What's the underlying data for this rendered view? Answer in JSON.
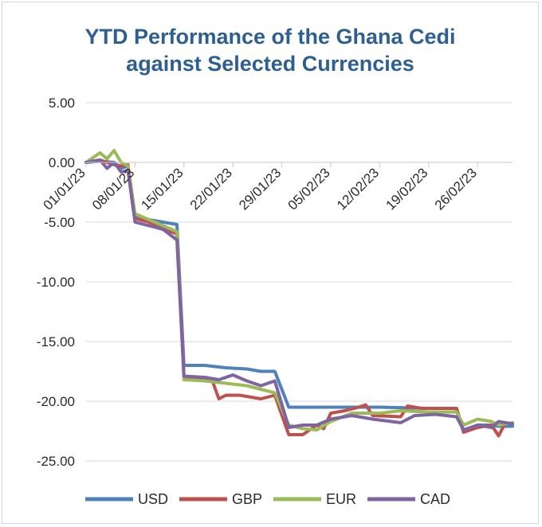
{
  "chart_data": {
    "type": "line",
    "title_lines": [
      "YTD Performance of the Ghana Cedi",
      "against Selected Currencies"
    ],
    "xlabel": "",
    "ylabel": "",
    "ylim": [
      -25,
      5
    ],
    "yticks": [
      5,
      0,
      -5,
      -10,
      -15,
      -20,
      -25
    ],
    "ytick_labels": [
      "5.00",
      "0.00",
      "-5.00",
      "-10.00",
      "-15.00",
      "-20.00",
      "-25.00"
    ],
    "xlim": [
      "2023-01-01",
      "2023-03-03"
    ],
    "xticks": [
      "2023-01-01",
      "2023-01-08",
      "2023-01-15",
      "2023-01-22",
      "2023-01-29",
      "2023-02-05",
      "2023-02-12",
      "2023-02-19",
      "2023-02-26"
    ],
    "xtick_labels": [
      "01/01/23",
      "08/01/23",
      "15/01/23",
      "22/01/23",
      "29/01/23",
      "05/02/23",
      "12/02/23",
      "19/02/23",
      "26/02/23"
    ],
    "grid": "horizontal",
    "legend_position": "bottom",
    "series": [
      {
        "name": "USD",
        "color": "#4f81bd",
        "points": [
          [
            "2023-01-01",
            0.0
          ],
          [
            "2023-01-03",
            0.1
          ],
          [
            "2023-01-05",
            0.0
          ],
          [
            "2023-01-06",
            -0.5
          ],
          [
            "2023-01-07",
            -0.3
          ],
          [
            "2023-01-08",
            -4.5
          ],
          [
            "2023-01-10",
            -4.8
          ],
          [
            "2023-01-12",
            -5.0
          ],
          [
            "2023-01-14",
            -5.2
          ],
          [
            "2023-01-15",
            -17.0
          ],
          [
            "2023-01-18",
            -17.0
          ],
          [
            "2023-01-21",
            -17.2
          ],
          [
            "2023-01-24",
            -17.3
          ],
          [
            "2023-01-26",
            -17.5
          ],
          [
            "2023-01-28",
            -17.5
          ],
          [
            "2023-01-30",
            -20.5
          ],
          [
            "2023-02-05",
            -20.5
          ],
          [
            "2023-02-12",
            -20.5
          ],
          [
            "2023-02-19",
            -20.6
          ],
          [
            "2023-02-23",
            -20.6
          ],
          [
            "2023-02-24",
            -22.5
          ],
          [
            "2023-02-26",
            -22.0
          ],
          [
            "2023-02-28",
            -22.0
          ],
          [
            "2023-03-01",
            -22.1
          ],
          [
            "2023-03-03",
            -22.1
          ]
        ]
      },
      {
        "name": "GBP",
        "color": "#c0504d",
        "points": [
          [
            "2023-01-01",
            0.0
          ],
          [
            "2023-01-03",
            0.2
          ],
          [
            "2023-01-05",
            -0.2
          ],
          [
            "2023-01-06",
            -0.3
          ],
          [
            "2023-01-07",
            -0.2
          ],
          [
            "2023-01-08",
            -4.7
          ],
          [
            "2023-01-10",
            -5.0
          ],
          [
            "2023-01-12",
            -5.5
          ],
          [
            "2023-01-14",
            -6.0
          ],
          [
            "2023-01-15",
            -18.0
          ],
          [
            "2023-01-17",
            -18.1
          ],
          [
            "2023-01-19",
            -18.2
          ],
          [
            "2023-01-20",
            -19.8
          ],
          [
            "2023-01-21",
            -19.5
          ],
          [
            "2023-01-23",
            -19.5
          ],
          [
            "2023-01-26",
            -19.8
          ],
          [
            "2023-01-28",
            -19.5
          ],
          [
            "2023-01-30",
            -22.8
          ],
          [
            "2023-02-01",
            -22.8
          ],
          [
            "2023-02-03",
            -22.0
          ],
          [
            "2023-02-04",
            -22.3
          ],
          [
            "2023-02-05",
            -21.0
          ],
          [
            "2023-02-07",
            -20.8
          ],
          [
            "2023-02-09",
            -20.5
          ],
          [
            "2023-02-10",
            -20.3
          ],
          [
            "2023-02-11",
            -21.2
          ],
          [
            "2023-02-15",
            -21.3
          ],
          [
            "2023-02-16",
            -20.4
          ],
          [
            "2023-02-18",
            -20.6
          ],
          [
            "2023-02-23",
            -20.6
          ],
          [
            "2023-02-24",
            -22.6
          ],
          [
            "2023-02-26",
            -22.2
          ],
          [
            "2023-02-28",
            -22.0
          ],
          [
            "2023-03-01",
            -22.9
          ],
          [
            "2023-03-02",
            -21.8
          ],
          [
            "2023-03-03",
            -21.9
          ]
        ]
      },
      {
        "name": "EUR",
        "color": "#9bbb59",
        "points": [
          [
            "2023-01-01",
            0.0
          ],
          [
            "2023-01-03",
            0.8
          ],
          [
            "2023-01-04",
            0.3
          ],
          [
            "2023-01-05",
            1.0
          ],
          [
            "2023-01-06",
            0.0
          ],
          [
            "2023-01-07",
            -0.3
          ],
          [
            "2023-01-08",
            -4.3
          ],
          [
            "2023-01-10",
            -4.8
          ],
          [
            "2023-01-12",
            -5.3
          ],
          [
            "2023-01-14",
            -5.8
          ],
          [
            "2023-01-15",
            -18.2
          ],
          [
            "2023-01-18",
            -18.3
          ],
          [
            "2023-01-21",
            -18.5
          ],
          [
            "2023-01-24",
            -18.7
          ],
          [
            "2023-01-26",
            -19.0
          ],
          [
            "2023-01-28",
            -19.3
          ],
          [
            "2023-01-30",
            -22.0
          ],
          [
            "2023-02-01",
            -22.3
          ],
          [
            "2023-02-03",
            -22.4
          ],
          [
            "2023-02-05",
            -21.7
          ],
          [
            "2023-02-08",
            -21.0
          ],
          [
            "2023-02-12",
            -21.0
          ],
          [
            "2023-02-15",
            -20.8
          ],
          [
            "2023-02-19",
            -20.9
          ],
          [
            "2023-02-23",
            -20.9
          ],
          [
            "2023-02-24",
            -22.0
          ],
          [
            "2023-02-26",
            -21.5
          ],
          [
            "2023-02-28",
            -21.7
          ],
          [
            "2023-03-01",
            -22.0
          ],
          [
            "2023-03-03",
            -21.8
          ]
        ]
      },
      {
        "name": "CAD",
        "color": "#8064a2",
        "points": [
          [
            "2023-01-01",
            0.0
          ],
          [
            "2023-01-03",
            0.2
          ],
          [
            "2023-01-04",
            -0.5
          ],
          [
            "2023-01-05",
            0.0
          ],
          [
            "2023-01-06",
            -0.8
          ],
          [
            "2023-01-07",
            -0.7
          ],
          [
            "2023-01-08",
            -5.0
          ],
          [
            "2023-01-10",
            -5.3
          ],
          [
            "2023-01-12",
            -5.6
          ],
          [
            "2023-01-14",
            -6.5
          ],
          [
            "2023-01-15",
            -17.9
          ],
          [
            "2023-01-18",
            -18.0
          ],
          [
            "2023-01-20",
            -18.2
          ],
          [
            "2023-01-22",
            -17.8
          ],
          [
            "2023-01-24",
            -18.3
          ],
          [
            "2023-01-26",
            -18.7
          ],
          [
            "2023-01-28",
            -18.3
          ],
          [
            "2023-01-30",
            -22.2
          ],
          [
            "2023-02-01",
            -22.0
          ],
          [
            "2023-02-03",
            -22.0
          ],
          [
            "2023-02-05",
            -21.5
          ],
          [
            "2023-02-08",
            -21.2
          ],
          [
            "2023-02-11",
            -21.5
          ],
          [
            "2023-02-15",
            -21.8
          ],
          [
            "2023-02-17",
            -21.2
          ],
          [
            "2023-02-20",
            -21.1
          ],
          [
            "2023-02-23",
            -21.3
          ],
          [
            "2023-02-24",
            -22.4
          ],
          [
            "2023-02-26",
            -22.0
          ],
          [
            "2023-02-28",
            -22.2
          ],
          [
            "2023-03-01",
            -21.7
          ],
          [
            "2023-03-03",
            -21.9
          ]
        ]
      }
    ]
  }
}
